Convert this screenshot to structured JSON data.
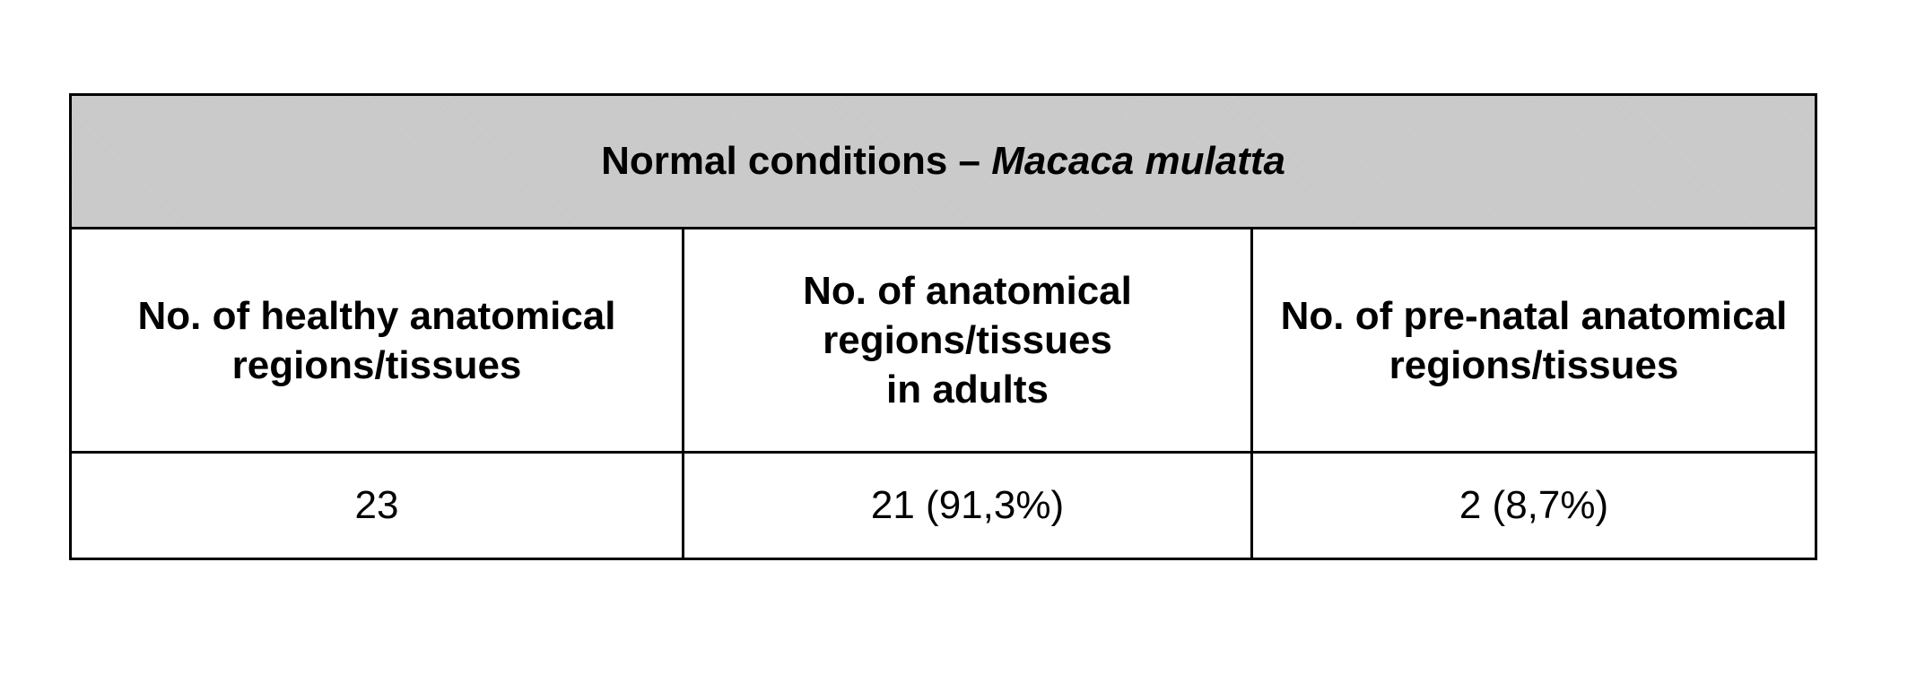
{
  "table": {
    "title": {
      "prefix": "Normal conditions – ",
      "species": "Macaca mulatta"
    },
    "headers": [
      {
        "lines": [
          "No. of healthy anatomical",
          "regions/tissues"
        ]
      },
      {
        "lines": [
          "No. of anatomical",
          "regions/tissues",
          "in adults"
        ]
      },
      {
        "lines": [
          "No. of pre-natal anatomical",
          "regions/tissues"
        ]
      }
    ],
    "values": [
      "23",
      "21 (91,3%)",
      "2 (8,7%)"
    ],
    "colors": {
      "title_background": "#c8c8c8",
      "border": "#000000"
    }
  }
}
